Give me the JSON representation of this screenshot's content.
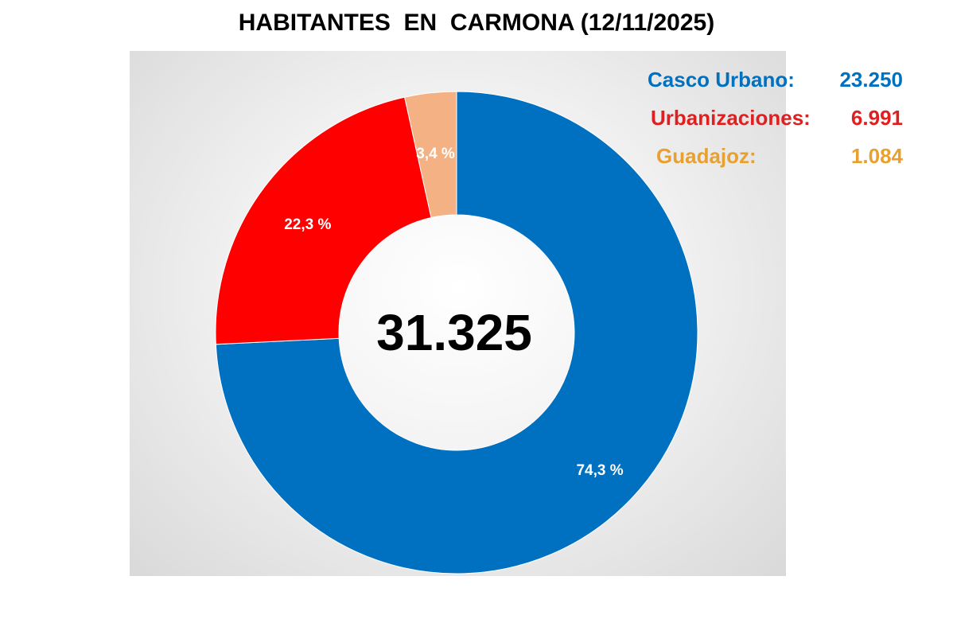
{
  "chart_data": {
    "type": "pie",
    "title": "HABITANTES  EN  CARMONA (12/11/2025)",
    "total": "31.325",
    "categories": [
      "Casco Urbano",
      "Urbanizaciones",
      "Guadajoz"
    ],
    "values": [
      23250,
      6991,
      1084
    ],
    "percent_labels": [
      "74,3 %",
      "22,3 %",
      "3,4 %"
    ],
    "colors": [
      "#0070C0",
      "#FF0000",
      "#F4B183"
    ],
    "legend": [
      {
        "label": "Casco Urbano:",
        "value": "23.250",
        "color": "#0070C0"
      },
      {
        "label": "Urbanizaciones:",
        "value": "6.991",
        "color": "#E02020"
      },
      {
        "label": "Guadajoz:",
        "value": "1.084",
        "color": "#E8A030"
      }
    ],
    "legend_position": "top-right"
  }
}
